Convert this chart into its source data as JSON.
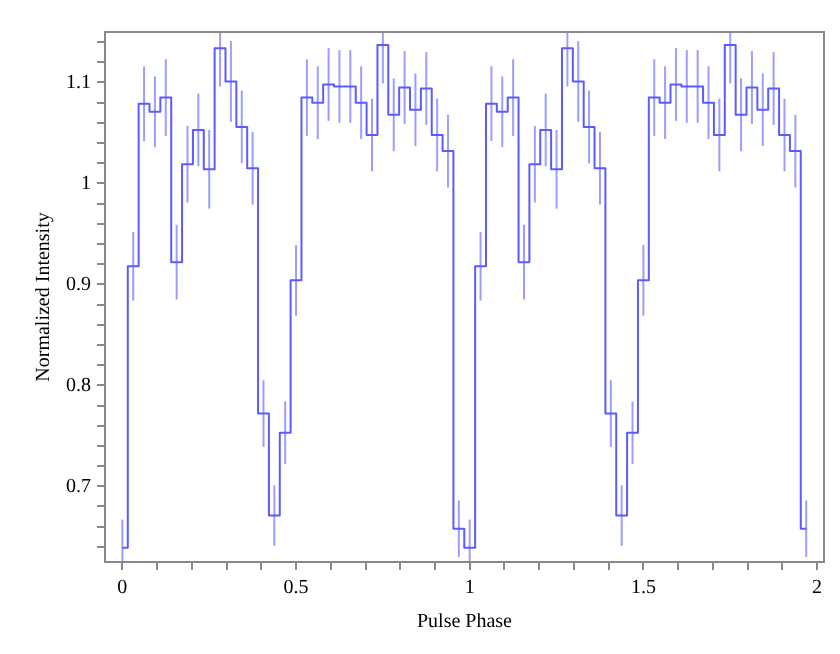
{
  "chart_data": {
    "type": "step",
    "xlabel": "Pulse Phase",
    "ylabel": "Normalized Intensity",
    "x": [
      0,
      0.03125,
      0.0625,
      0.09375,
      0.125,
      0.15625,
      0.1875,
      0.21875,
      0.25,
      0.28125,
      0.3125,
      0.34375,
      0.375,
      0.40625,
      0.4375,
      0.46875,
      0.5,
      0.53125,
      0.5625,
      0.59375,
      0.625,
      0.65625,
      0.6875,
      0.71875,
      0.75,
      0.78125,
      0.8125,
      0.84375,
      0.875,
      0.90625,
      0.9375,
      0.96875,
      1,
      1.03125,
      1.0625,
      1.09375,
      1.125,
      1.15625,
      1.1875,
      1.21875,
      1.25,
      1.28125,
      1.3125,
      1.34375,
      1.375,
      1.40625,
      1.4375,
      1.46875,
      1.5,
      1.53125,
      1.5625,
      1.59375,
      1.625,
      1.65625,
      1.6875,
      1.71875,
      1.75,
      1.78125,
      1.8125,
      1.84375,
      1.875,
      1.90625,
      1.9375,
      1.96875
    ],
    "series": [
      {
        "color": "#5b5bff",
        "values": [
          0.639,
          0.918,
          1.079,
          1.071,
          1.085,
          0.922,
          1.019,
          1.053,
          1.014,
          1.134,
          1.101,
          1.056,
          1.015,
          0.772,
          0.671,
          0.753,
          0.904,
          1.085,
          1.08,
          1.098,
          1.096,
          1.096,
          1.08,
          1.048,
          1.137,
          1.068,
          1.095,
          1.073,
          1.094,
          1.048,
          1.032,
          0.658,
          0.639,
          0.918,
          1.079,
          1.071,
          1.085,
          0.922,
          1.019,
          1.053,
          1.014,
          1.134,
          1.101,
          1.056,
          1.015,
          0.772,
          0.671,
          0.753,
          0.904,
          1.085,
          1.08,
          1.098,
          1.096,
          1.096,
          1.08,
          1.048,
          1.137,
          1.068,
          1.095,
          1.073,
          1.094,
          1.048,
          1.032,
          0.658
        ],
        "errors": [
          [
            0.625,
            0.667
          ],
          0.034,
          0.037,
          0.035,
          0.038,
          0.037,
          0.038,
          0.036,
          0.039,
          [
            1.096,
            1.15
          ],
          0.04,
          0.036,
          0.036,
          0.033,
          0.03,
          0.031,
          0.035,
          0.038,
          0.036,
          0.036,
          0.036,
          0.036,
          0.036,
          0.036,
          [
            1.099,
            1.15
          ],
          0.036,
          0.036,
          0.036,
          0.036,
          0.036,
          0.036,
          0.028,
          [
            0.625,
            0.667
          ],
          0.034,
          0.037,
          0.035,
          0.038,
          0.037,
          0.038,
          0.036,
          0.039,
          [
            1.096,
            1.15
          ],
          0.04,
          0.036,
          0.036,
          0.033,
          0.03,
          0.031,
          0.035,
          0.038,
          0.036,
          0.036,
          0.036,
          0.036,
          0.036,
          0.036,
          [
            1.099,
            1.15
          ],
          0.036,
          0.036,
          0.036,
          0.036,
          0.036,
          0.036,
          0.028
        ]
      }
    ],
    "xlim": [
      -0.05,
      2.02
    ],
    "ylim": [
      0.625,
      1.15
    ],
    "xticks": [
      0,
      {
        "value": 0.1,
        "label": null
      },
      {
        "value": 0.2,
        "label": null
      },
      {
        "value": 0.3,
        "label": null
      },
      {
        "value": 0.4,
        "label": null
      },
      0.5,
      {
        "value": 0.6,
        "label": null
      },
      {
        "value": 0.7,
        "label": null
      },
      {
        "value": 0.8,
        "label": null
      },
      {
        "value": 0.9,
        "label": null
      },
      1,
      {
        "value": 1.1,
        "label": null
      },
      {
        "value": 1.2,
        "label": null
      },
      {
        "value": 1.3,
        "label": null
      },
      {
        "value": 1.4,
        "label": null
      },
      1.5,
      {
        "value": 1.6,
        "label": null
      },
      {
        "value": 1.7,
        "label": null
      },
      {
        "value": 1.8,
        "label": null
      },
      {
        "value": 1.9,
        "label": null
      },
      2
    ],
    "yticks": [
      {
        "value": 0.64,
        "label": null
      },
      {
        "value": 0.66,
        "label": null
      },
      {
        "value": 0.68,
        "label": null
      },
      0.7,
      {
        "value": 0.72,
        "label": null
      },
      {
        "value": 0.74,
        "label": null
      },
      {
        "value": 0.76,
        "label": null
      },
      {
        "value": 0.78,
        "label": null
      },
      0.8,
      {
        "value": 0.82,
        "label": null
      },
      {
        "value": 0.84,
        "label": null
      },
      {
        "value": 0.86,
        "label": null
      },
      {
        "value": 0.88,
        "label": null
      },
      0.9,
      {
        "value": 0.92,
        "label": null
      },
      {
        "value": 0.94,
        "label": null
      },
      {
        "value": 0.96,
        "label": null
      },
      {
        "value": 0.98,
        "label": null
      },
      1,
      {
        "value": 1.02,
        "label": null
      },
      {
        "value": 1.04,
        "label": null
      },
      {
        "value": 1.06,
        "label": null
      },
      {
        "value": 1.08,
        "label": null
      },
      1.1,
      {
        "value": 1.12,
        "label": null
      },
      {
        "value": 1.14,
        "label": null
      }
    ],
    "grid": false,
    "legend": false
  }
}
